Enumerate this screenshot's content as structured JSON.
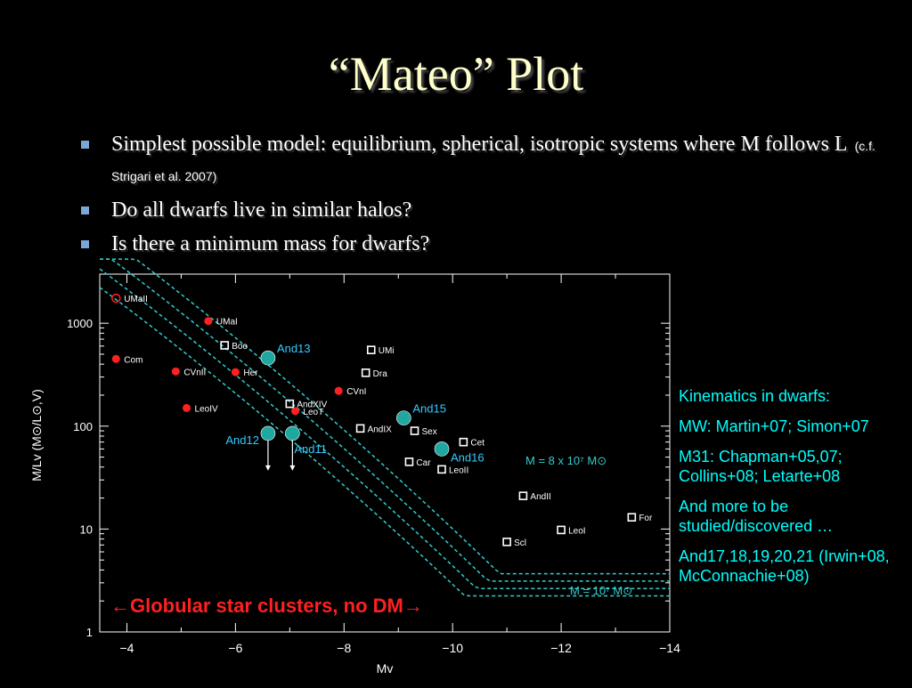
{
  "slide": {
    "title": "“Mateo” Plot",
    "bullets": [
      {
        "text": "Simplest possible model: equilibrium, spherical, isotropic systems where M follows L",
        "cite": "(c.f. Strigari et al. 2007)"
      },
      {
        "text": "Do all dwarfs live in similar halos?",
        "cite": ""
      },
      {
        "text": "Is there a minimum mass for dwarfs?",
        "cite": ""
      }
    ],
    "side_notes": [
      "Kinematics in dwarfs:",
      "MW: Martin+07; Simon+07",
      "M31: Chapman+05,07; Collins+08; Letarte+08",
      "And more to be studied/discovered …",
      "And17,18,19,20,21 (Irwin+08, McConnachie+08)"
    ]
  },
  "chart_data": {
    "type": "scatter",
    "xlabel": "Mv",
    "ylabel": "M/Lv (M⊙/L⊙,V)",
    "xlim": [
      -3.5,
      -14
    ],
    "ylim": [
      1,
      3000
    ],
    "ylog": true,
    "xticks": [
      -4,
      -6,
      -8,
      -10,
      -12,
      -14
    ],
    "xtick_labels": [
      "−4",
      "−6",
      "−8",
      "−10",
      "−12",
      "−14"
    ],
    "yticks": [
      1,
      10,
      100,
      1000
    ],
    "ytick_labels": [
      "1",
      "10",
      "100",
      "1000"
    ],
    "colors": {
      "mw_new": "#ff2020",
      "classical": "#ffffff",
      "m31": "#20a8a0",
      "curve": "#33cccc",
      "annot": "#ff2020",
      "label_cyan": "#33ccff"
    },
    "series": [
      {
        "name": "",
        "marker": "filled-circle-red",
        "points": [
          {
            "label": "UMaI",
            "x": -5.5,
            "y": 1050
          },
          {
            "label": "Com",
            "x": -3.8,
            "y": 450
          },
          {
            "label": "CVnII",
            "x": -4.9,
            "y": 340
          },
          {
            "label": "Her",
            "x": -6.0,
            "y": 335
          },
          {
            "label": "CVnI",
            "x": -7.9,
            "y": 220
          },
          {
            "label": "LeoIV",
            "x": -5.1,
            "y": 150
          },
          {
            "label": "LeoT",
            "x": -7.1,
            "y": 140
          }
        ]
      },
      {
        "name": "",
        "marker": "open-circle-red",
        "points": [
          {
            "label": "UMaII",
            "x": -3.8,
            "y": 1750
          }
        ]
      },
      {
        "name": "",
        "marker": "open-square-white",
        "points": [
          {
            "label": "Boo",
            "x": -5.8,
            "y": 610
          },
          {
            "label": "UMi",
            "x": -8.5,
            "y": 550
          },
          {
            "label": "Dra",
            "x": -8.4,
            "y": 330
          },
          {
            "label": "AndXIV",
            "x": -7.0,
            "y": 165
          },
          {
            "label": "AndIX",
            "x": -8.3,
            "y": 95
          },
          {
            "label": "Sex",
            "x": -9.3,
            "y": 90
          },
          {
            "label": "Cet",
            "x": -10.2,
            "y": 70
          },
          {
            "label": "Car",
            "x": -9.2,
            "y": 45
          },
          {
            "label": "LeoII",
            "x": -9.8,
            "y": 38
          },
          {
            "label": "AndII",
            "x": -11.3,
            "y": 21
          },
          {
            "label": "For",
            "x": -13.3,
            "y": 13
          },
          {
            "label": "LeoI",
            "x": -12.0,
            "y": 9.8
          },
          {
            "label": "Scl",
            "x": -11.0,
            "y": 7.5
          }
        ]
      },
      {
        "name": "",
        "marker": "filled-circle-teal",
        "points": [
          {
            "label": "And13",
            "x": -6.6,
            "y": 460
          },
          {
            "label": "And15",
            "x": -9.1,
            "y": 120
          },
          {
            "label": "And16",
            "x": -9.8,
            "y": 60
          }
        ]
      },
      {
        "name": "",
        "marker": "filled-circle-teal-upperlimit",
        "points": [
          {
            "label": "And12",
            "x": -6.6,
            "y": 85
          },
          {
            "label": "And11",
            "x": -7.05,
            "y": 85
          }
        ]
      }
    ],
    "curve_labels": [
      "M = 8 x 10⁷ M⊙",
      "M = 10⁷ M⊙"
    ],
    "annotation": "Globular star clusters, no DM"
  }
}
